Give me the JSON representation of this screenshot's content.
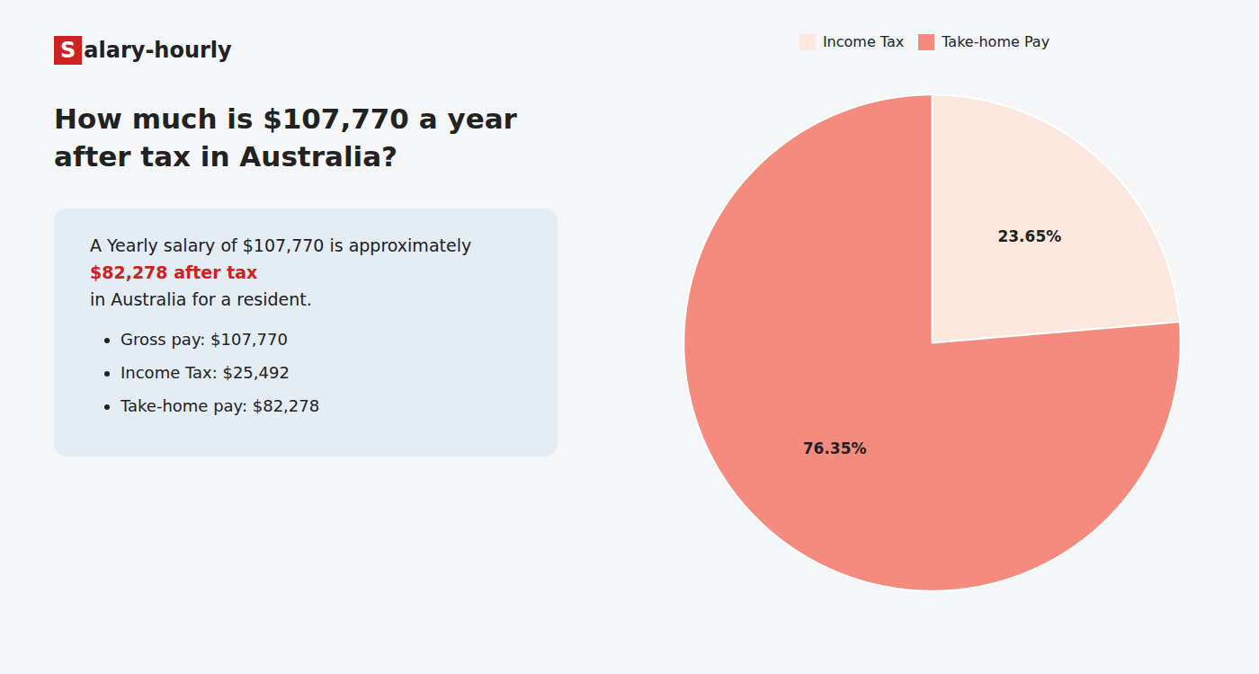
{
  "chart_data": {
    "type": "pie",
    "title": "How much is $107,770 a year after tax in Australia?",
    "categories": [
      "Income Tax",
      "Take-home Pay"
    ],
    "values": [
      23.65,
      76.35
    ],
    "value_labels": [
      "23.65%",
      "76.35%"
    ],
    "colors": [
      "#fce8df",
      "#f48b7e"
    ],
    "data_labels": true,
    "legend": "top",
    "annotations": [
      "S",
      "alary-hourly",
      "A Yearly salary of $107,770 is approximately ",
      "$82,278 after tax",
      "in Australia for a resident.",
      "Gross pay: $107,770",
      "Income Tax: $25,492",
      "Take-home pay: $82,278"
    ]
  }
}
